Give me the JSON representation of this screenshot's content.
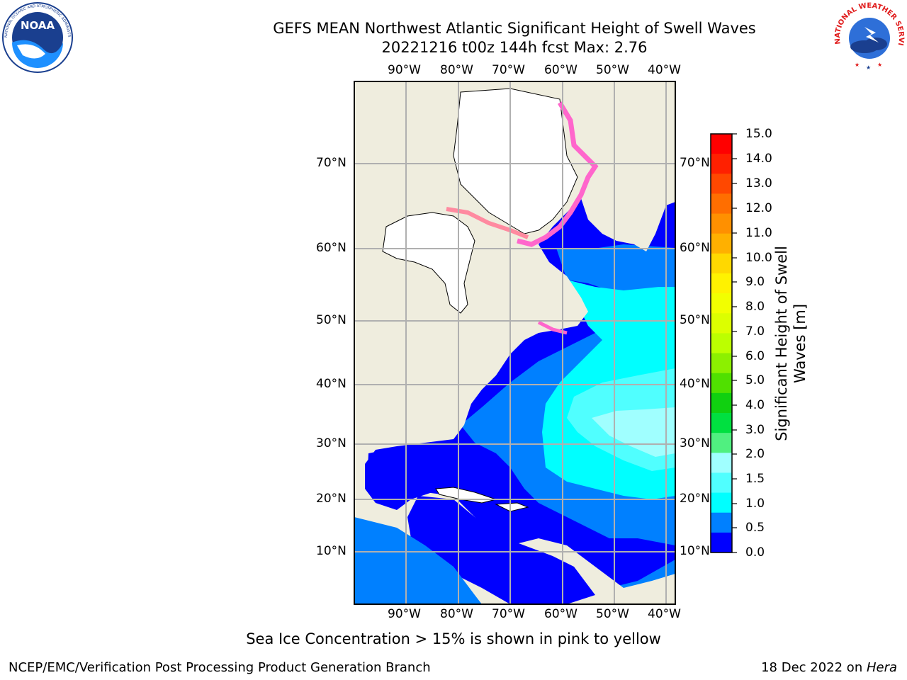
{
  "header": {
    "title_line1": "GEFS MEAN Northwest Atlantic Significant Height of Swell Waves",
    "title_line2": "20221216 t00z 144h fcst   Max: 2.76"
  },
  "logos": {
    "noaa": {
      "text": "NOAA",
      "ring_text": "NATIONAL OCEANIC AND ATMOSPHERIC ADMINISTRATION · U.S. DEPARTMENT OF COMMERCE"
    },
    "nws": {
      "ring_text": "NATIONAL WEATHER SERVICE"
    }
  },
  "map": {
    "lon_labels": [
      "90°W",
      "80°W",
      "70°W",
      "60°W",
      "50°W",
      "40°W"
    ],
    "lat_labels": [
      "70°N",
      "60°N",
      "50°N",
      "40°N",
      "30°N",
      "20°N",
      "10°N"
    ],
    "colors": {
      "land": "#efedde",
      "ice_free_land": "#ffffff",
      "coast": "#000000",
      "grid": "#b0b0b0"
    }
  },
  "colorbar": {
    "label_line1": "Significant Height of Swell",
    "label_line2": "Waves [m]",
    "ticks": [
      "15.0",
      "14.0",
      "13.0",
      "12.0",
      "11.0",
      "10.0",
      "9.0",
      "8.0",
      "7.0",
      "6.0",
      "5.0",
      "4.0",
      "3.0",
      "2.0",
      "1.5",
      "1.0",
      "0.5",
      "0.0"
    ],
    "colors_top_to_bottom": [
      "#ff0000",
      "#ff2000",
      "#ff4800",
      "#ff6e00",
      "#ff9000",
      "#ffb000",
      "#ffd800",
      "#fff200",
      "#f2ff00",
      "#dcff00",
      "#bcff00",
      "#8cf000",
      "#50e000",
      "#10d010",
      "#00e040",
      "#50f080",
      "#a0ffff",
      "#50ffff",
      "#00ffff",
      "#0080ff",
      "#0000ff"
    ]
  },
  "footer": {
    "caption": "Sea Ice Concentration > 15% is shown in pink to yellow",
    "credit": "NCEP/EMC/Verification Post Processing Product Generation Branch",
    "date": "18 Dec 2022 on ",
    "machine": "Hera"
  }
}
